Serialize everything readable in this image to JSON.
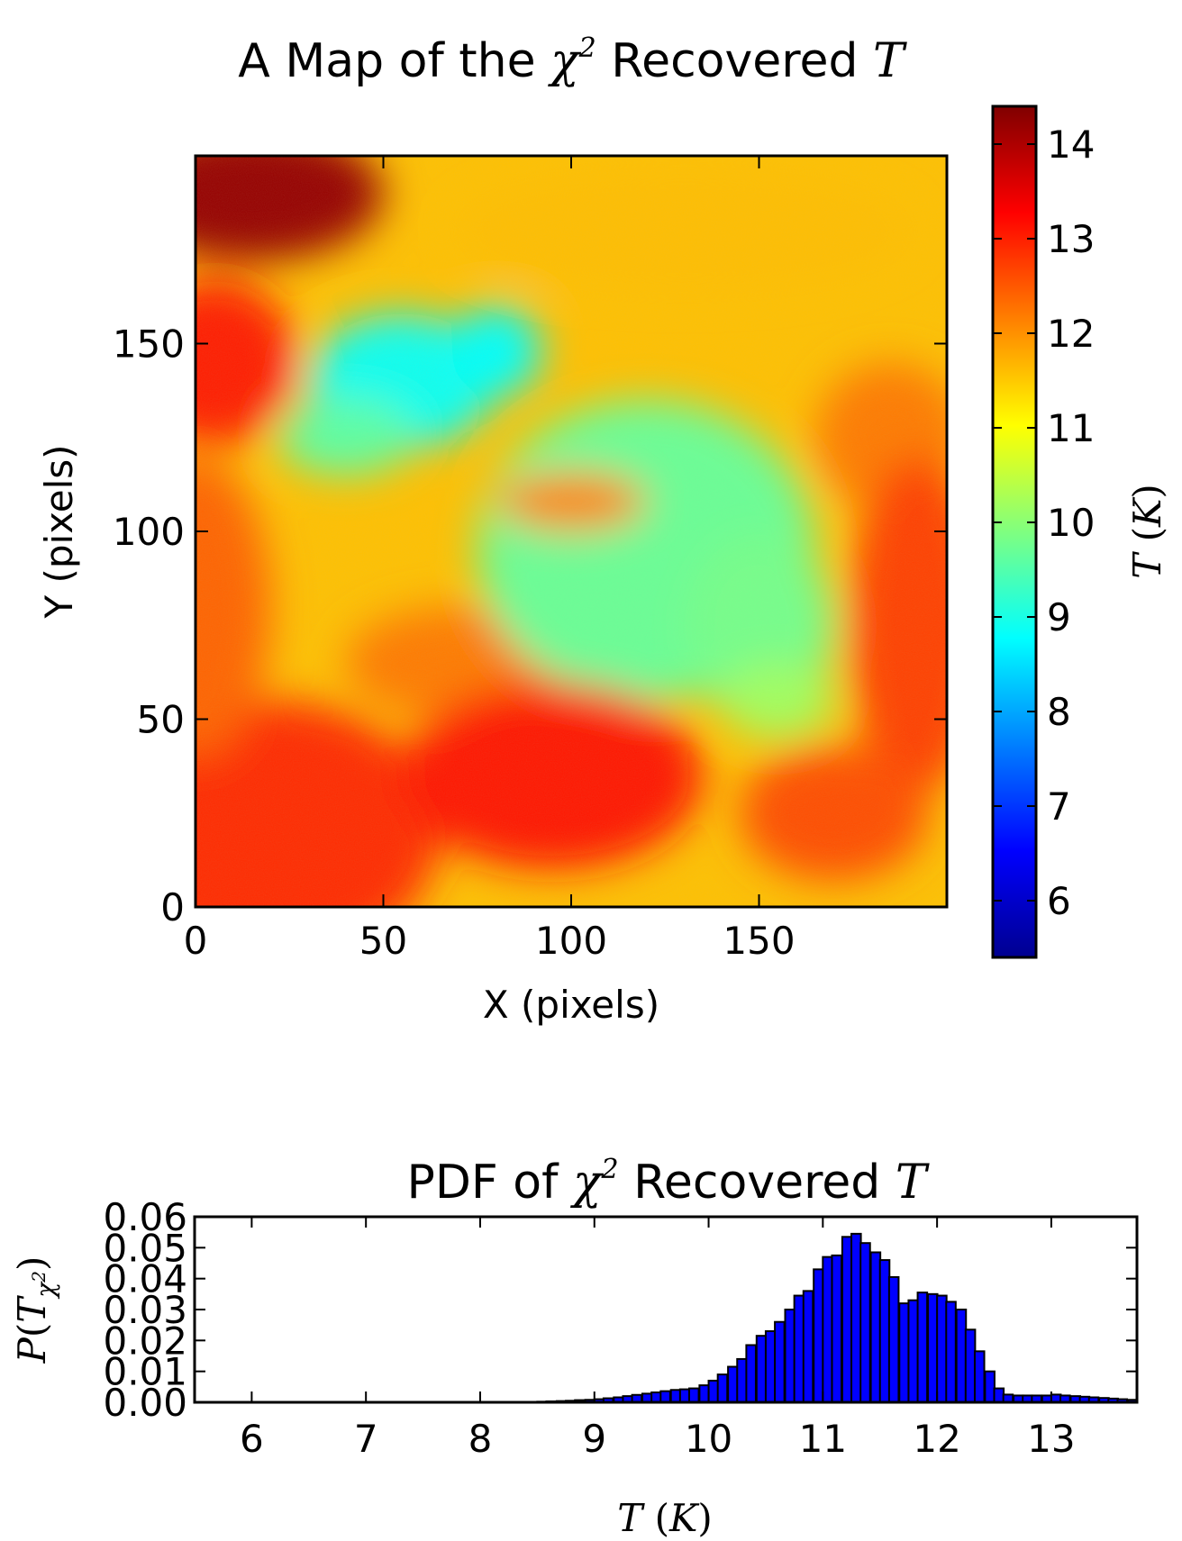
{
  "chart_data": [
    {
      "type": "heatmap",
      "title": {
        "text": "A Map of the ",
        "symbol": "χ",
        "sup": "2",
        "after": " Recovered ",
        "var": "T"
      },
      "xlabel": "X (pixels)",
      "ylabel": "Y (pixels)",
      "xlim": [
        0,
        200
      ],
      "ylim": [
        0,
        200
      ],
      "xticks": [
        "0",
        "50",
        "100",
        "150"
      ],
      "yticks": [
        "0",
        "50",
        "100",
        "150"
      ],
      "grid": false,
      "colormap": "jet",
      "colorbar": {
        "label": {
          "var": "T",
          "unit": "K"
        },
        "range": [
          5.4,
          14.4
        ],
        "ticks": [
          "6",
          "7",
          "8",
          "9",
          "10",
          "11",
          "12",
          "13",
          "14"
        ]
      },
      "regions": [
        {
          "name": "top-left hot corner",
          "value": 14.2
        },
        {
          "name": "left-middle warm lobe",
          "value": 13.0
        },
        {
          "name": "upper-left cool filament",
          "value": 8.9
        },
        {
          "name": "central cool region",
          "value": 9.7
        },
        {
          "name": "central warm blob",
          "value": 12.1
        },
        {
          "name": "right warm edge",
          "value": 12.7
        },
        {
          "name": "bottom-middle warm region",
          "value": 13.1
        },
        {
          "name": "bottom-right warm region",
          "value": 12.6
        },
        {
          "name": "top band",
          "value": 11.6
        }
      ]
    },
    {
      "type": "bar",
      "title": {
        "text": "PDF of ",
        "symbol": "χ",
        "sup": "2",
        "after": " Recovered ",
        "var": "T"
      },
      "xlabel": {
        "var": "T",
        "unit": "K"
      },
      "ylabel": {
        "var": "P",
        "sub": "T",
        "subsub": "χ",
        "subsubsup": "2"
      },
      "xlim": [
        5.5,
        13.75
      ],
      "ylim": [
        0.0,
        0.06
      ],
      "xticks": [
        "6",
        "7",
        "8",
        "9",
        "10",
        "11",
        "12",
        "13"
      ],
      "yticks": [
        "0.00",
        "0.01",
        "0.02",
        "0.03",
        "0.04",
        "0.05",
        "0.06"
      ],
      "grid": false,
      "bar_color": "#0000ff",
      "bin_width": 0.0833,
      "x": [
        8.5,
        8.58,
        8.67,
        8.75,
        8.83,
        8.92,
        9.0,
        9.08,
        9.17,
        9.25,
        9.33,
        9.42,
        9.5,
        9.58,
        9.67,
        9.75,
        9.83,
        9.92,
        10.0,
        10.08,
        10.17,
        10.25,
        10.33,
        10.42,
        10.5,
        10.58,
        10.67,
        10.75,
        10.83,
        10.92,
        11.0,
        11.08,
        11.17,
        11.25,
        11.33,
        11.42,
        11.5,
        11.58,
        11.67,
        11.75,
        11.83,
        11.92,
        12.0,
        12.08,
        12.17,
        12.25,
        12.33,
        12.42,
        12.5,
        12.58,
        12.67,
        12.75,
        12.83,
        12.92,
        13.0,
        13.08,
        13.17,
        13.25,
        13.33,
        13.42,
        13.5,
        13.58,
        13.67
      ],
      "values": [
        0.0002,
        0.0003,
        0.0004,
        0.0005,
        0.0007,
        0.0008,
        0.001,
        0.0013,
        0.0016,
        0.002,
        0.0024,
        0.0028,
        0.0032,
        0.0036,
        0.004,
        0.0042,
        0.0045,
        0.0055,
        0.007,
        0.009,
        0.0115,
        0.014,
        0.0185,
        0.0215,
        0.023,
        0.026,
        0.03,
        0.0345,
        0.036,
        0.043,
        0.047,
        0.0475,
        0.0535,
        0.0545,
        0.0515,
        0.0485,
        0.046,
        0.0405,
        0.032,
        0.033,
        0.0355,
        0.035,
        0.0345,
        0.0325,
        0.03,
        0.0235,
        0.0165,
        0.01,
        0.0045,
        0.0025,
        0.0022,
        0.0022,
        0.0022,
        0.0022,
        0.0025,
        0.0022,
        0.002,
        0.0018,
        0.0016,
        0.0014,
        0.0012,
        0.001,
        0.0008
      ]
    }
  ]
}
